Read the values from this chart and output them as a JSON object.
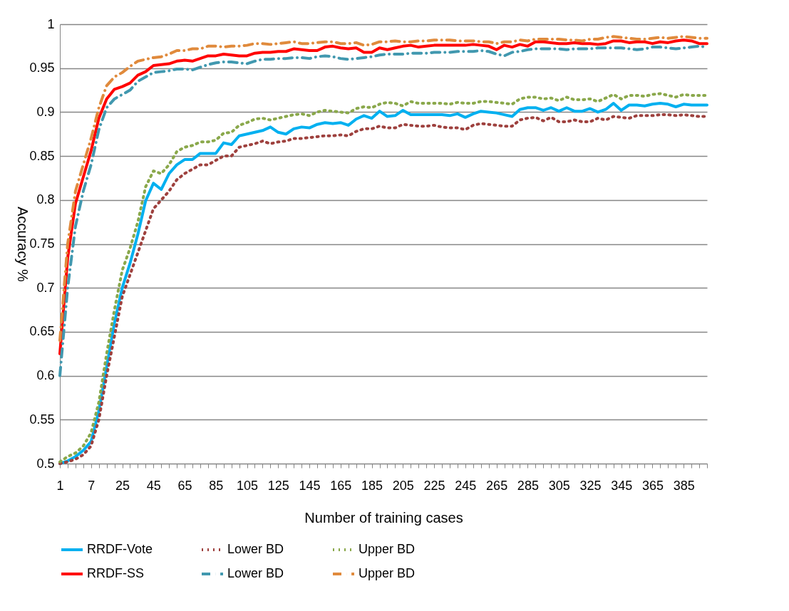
{
  "chart_data": {
    "type": "line",
    "xlabel": "Number of training cases",
    "ylabel": "Accuracy %",
    "categories": [
      "1",
      null,
      null,
      null,
      "7",
      null,
      null,
      null,
      "25",
      null,
      null,
      null,
      "45",
      null,
      null,
      null,
      "65",
      null,
      null,
      null,
      "85",
      null,
      null,
      null,
      "105",
      null,
      null,
      null,
      "125",
      null,
      null,
      null,
      "145",
      null,
      null,
      null,
      "165",
      null,
      null,
      null,
      "185",
      null,
      null,
      null,
      "205",
      null,
      null,
      null,
      "225",
      null,
      null,
      null,
      "245",
      null,
      null,
      null,
      "265",
      null,
      null,
      null,
      "285",
      null,
      null,
      null,
      "305",
      null,
      null,
      null,
      "325",
      null,
      null,
      null,
      "345",
      null,
      null,
      null,
      "365",
      null,
      null,
      null,
      "385",
      null,
      null,
      null
    ],
    "ylim": [
      0.5,
      1
    ],
    "yticks": [
      0.5,
      0.55,
      0.6,
      0.65,
      0.7,
      0.75,
      0.8,
      0.85,
      0.9,
      0.95,
      1
    ],
    "grid": "y",
    "legend": "bottom",
    "marker": "none",
    "series": [
      {
        "name": "RRDF-Vote",
        "color": "#00b0f0",
        "line_style": "solid",
        "values": [
          0.5,
          0.503,
          0.508,
          0.515,
          0.525,
          0.56,
          0.61,
          0.66,
          0.7,
          0.728,
          0.761,
          0.799,
          0.819,
          0.812,
          0.83,
          0.84,
          0.846,
          0.846,
          0.853,
          0.853,
          0.853,
          0.865,
          0.863,
          0.873,
          0.875,
          0.877,
          0.879,
          0.883,
          0.877,
          0.875,
          0.881,
          0.883,
          0.882,
          0.886,
          0.888,
          0.887,
          0.888,
          0.885,
          0.892,
          0.896,
          0.893,
          0.901,
          0.895,
          0.896,
          0.902,
          0.897,
          0.897,
          0.897,
          0.897,
          0.897,
          0.896,
          0.898,
          0.894,
          0.898,
          0.901,
          0.9,
          0.899,
          0.897,
          0.895,
          0.903,
          0.905,
          0.905,
          0.902,
          0.905,
          0.901,
          0.905,
          0.901,
          0.901,
          0.904,
          0.9,
          0.903,
          0.91,
          0.902,
          0.908,
          0.908,
          0.907,
          0.909,
          0.91,
          0.909,
          0.906,
          0.909,
          0.908,
          0.908,
          0.908
        ]
      },
      {
        "name": "Lower BD",
        "color": "#9e413e",
        "line_style": "dotted",
        "values": [
          0.5,
          0.502,
          0.505,
          0.51,
          0.52,
          0.55,
          0.6,
          0.645,
          0.69,
          0.715,
          0.74,
          0.765,
          0.79,
          0.8,
          0.81,
          0.823,
          0.83,
          0.835,
          0.84,
          0.84,
          0.845,
          0.85,
          0.85,
          0.86,
          0.862,
          0.864,
          0.867,
          0.864,
          0.866,
          0.867,
          0.87,
          0.87,
          0.871,
          0.872,
          0.873,
          0.873,
          0.874,
          0.873,
          0.878,
          0.881,
          0.881,
          0.884,
          0.882,
          0.882,
          0.886,
          0.885,
          0.884,
          0.884,
          0.885,
          0.883,
          0.882,
          0.882,
          0.88,
          0.885,
          0.887,
          0.886,
          0.885,
          0.884,
          0.884,
          0.891,
          0.893,
          0.894,
          0.89,
          0.894,
          0.889,
          0.889,
          0.891,
          0.889,
          0.889,
          0.893,
          0.891,
          0.895,
          0.894,
          0.893,
          0.896,
          0.896,
          0.896,
          0.897,
          0.897,
          0.896,
          0.897,
          0.896,
          0.895,
          0.895
        ]
      },
      {
        "name": "Upper BD",
        "color": "#8aa84b",
        "line_style": "dotted",
        "values": [
          0.502,
          0.508,
          0.512,
          0.52,
          0.535,
          0.57,
          0.625,
          0.675,
          0.72,
          0.745,
          0.775,
          0.815,
          0.833,
          0.83,
          0.84,
          0.855,
          0.86,
          0.862,
          0.866,
          0.866,
          0.868,
          0.876,
          0.877,
          0.885,
          0.888,
          0.892,
          0.893,
          0.891,
          0.893,
          0.895,
          0.897,
          0.898,
          0.896,
          0.9,
          0.902,
          0.901,
          0.9,
          0.899,
          0.904,
          0.906,
          0.905,
          0.909,
          0.911,
          0.91,
          0.907,
          0.912,
          0.91,
          0.91,
          0.91,
          0.91,
          0.909,
          0.911,
          0.91,
          0.91,
          0.912,
          0.912,
          0.911,
          0.91,
          0.909,
          0.915,
          0.917,
          0.917,
          0.915,
          0.916,
          0.913,
          0.917,
          0.914,
          0.914,
          0.915,
          0.912,
          0.916,
          0.92,
          0.915,
          0.919,
          0.919,
          0.918,
          0.92,
          0.921,
          0.919,
          0.917,
          0.92,
          0.919,
          0.919,
          0.919
        ]
      },
      {
        "name": "RRDF-SS",
        "color": "#ff0000",
        "line_style": "solid",
        "values": [
          0.625,
          0.734,
          0.796,
          0.826,
          0.856,
          0.893,
          0.915,
          0.926,
          0.929,
          0.933,
          0.942,
          0.946,
          0.953,
          0.954,
          0.955,
          0.958,
          0.959,
          0.958,
          0.961,
          0.964,
          0.964,
          0.966,
          0.965,
          0.964,
          0.964,
          0.967,
          0.968,
          0.968,
          0.969,
          0.969,
          0.972,
          0.971,
          0.97,
          0.97,
          0.974,
          0.975,
          0.973,
          0.972,
          0.973,
          0.968,
          0.968,
          0.973,
          0.971,
          0.973,
          0.975,
          0.976,
          0.974,
          0.975,
          0.976,
          0.976,
          0.976,
          0.976,
          0.976,
          0.977,
          0.976,
          0.975,
          0.971,
          0.976,
          0.974,
          0.977,
          0.975,
          0.98,
          0.98,
          0.979,
          0.978,
          0.978,
          0.979,
          0.978,
          0.978,
          0.977,
          0.978,
          0.981,
          0.981,
          0.979,
          0.98,
          0.98,
          0.978,
          0.98,
          0.979,
          0.981,
          0.982,
          0.981,
          0.978,
          0.978
        ]
      },
      {
        "name": "Lower BD",
        "color": "#4198af",
        "line_style": "dashed",
        "values": [
          0.6,
          0.7,
          0.77,
          0.81,
          0.84,
          0.88,
          0.905,
          0.915,
          0.92,
          0.925,
          0.935,
          0.94,
          0.945,
          0.946,
          0.947,
          0.949,
          0.949,
          0.948,
          0.951,
          0.954,
          0.956,
          0.957,
          0.957,
          0.956,
          0.955,
          0.958,
          0.96,
          0.96,
          0.961,
          0.961,
          0.962,
          0.962,
          0.961,
          0.963,
          0.964,
          0.963,
          0.961,
          0.96,
          0.961,
          0.962,
          0.963,
          0.965,
          0.966,
          0.966,
          0.966,
          0.967,
          0.967,
          0.967,
          0.968,
          0.968,
          0.968,
          0.969,
          0.969,
          0.969,
          0.97,
          0.969,
          0.966,
          0.964,
          0.968,
          0.969,
          0.971,
          0.972,
          0.972,
          0.972,
          0.972,
          0.971,
          0.972,
          0.972,
          0.972,
          0.973,
          0.973,
          0.973,
          0.973,
          0.972,
          0.971,
          0.972,
          0.974,
          0.974,
          0.973,
          0.972,
          0.973,
          0.974,
          0.975,
          0.974
        ]
      },
      {
        "name": "Upper BD",
        "color": "#e08a3c",
        "line_style": "dashed",
        "values": [
          0.64,
          0.75,
          0.81,
          0.84,
          0.87,
          0.905,
          0.93,
          0.94,
          0.945,
          0.952,
          0.958,
          0.96,
          0.962,
          0.963,
          0.966,
          0.97,
          0.97,
          0.972,
          0.972,
          0.975,
          0.975,
          0.974,
          0.975,
          0.975,
          0.976,
          0.978,
          0.978,
          0.977,
          0.978,
          0.979,
          0.98,
          0.978,
          0.978,
          0.979,
          0.98,
          0.98,
          0.978,
          0.978,
          0.979,
          0.976,
          0.977,
          0.98,
          0.98,
          0.981,
          0.98,
          0.98,
          0.981,
          0.981,
          0.982,
          0.982,
          0.982,
          0.981,
          0.981,
          0.981,
          0.98,
          0.98,
          0.978,
          0.98,
          0.98,
          0.982,
          0.981,
          0.983,
          0.983,
          0.983,
          0.983,
          0.982,
          0.982,
          0.981,
          0.983,
          0.983,
          0.985,
          0.986,
          0.985,
          0.984,
          0.983,
          0.983,
          0.984,
          0.985,
          0.984,
          0.985,
          0.986,
          0.985,
          0.984,
          0.984
        ]
      }
    ]
  }
}
